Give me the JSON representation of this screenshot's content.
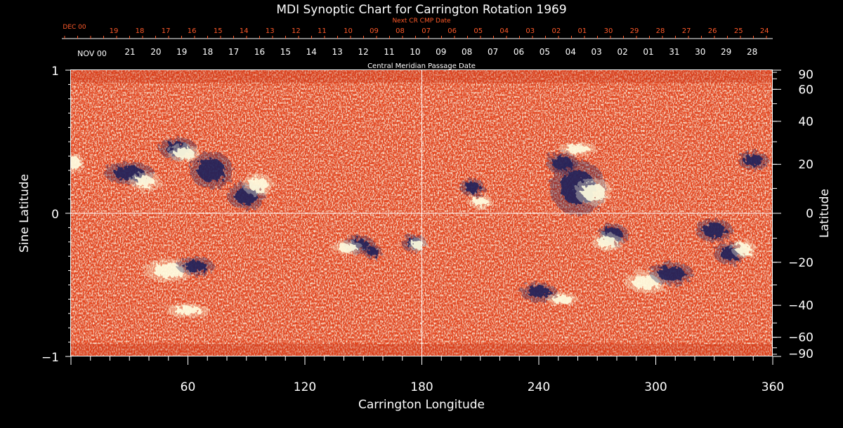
{
  "chart_data": {
    "type": "heatmap",
    "title": "MDI Synoptic Chart for Carrington Rotation 1969",
    "xlabel": "Carrington Longitude",
    "ylabel_left": "Sine Latitude",
    "ylabel_right": "Latitude",
    "xlim": [
      0,
      360
    ],
    "ylim": [
      -1,
      1
    ],
    "x_ticks": [
      60,
      120,
      180,
      240,
      300,
      360
    ],
    "y_ticks_left": [
      1,
      0,
      -1
    ],
    "y_ticks_left_labels": [
      "1",
      "0",
      "−1"
    ],
    "y_ticks_right_deg": [
      90,
      60,
      40,
      20,
      0,
      -20,
      -40,
      -60,
      -90
    ],
    "y_ticks_right_labels": [
      "90",
      "60",
      "40",
      "20",
      "0",
      "−20",
      "−40",
      "−60",
      "−90"
    ],
    "cmp_axis_label": "Central Meridian Passage Date",
    "cmp_start_label": "NOV 00",
    "cmp_dates": [
      "21",
      "20",
      "19",
      "18",
      "17",
      "16",
      "15",
      "14",
      "13",
      "12",
      "11",
      "10",
      "09",
      "08",
      "07",
      "06",
      "05",
      "04",
      "03",
      "02",
      "01",
      "31",
      "30",
      "29",
      "28"
    ],
    "next_cr_label": "Next CR CMP Date",
    "next_cr_start_label": "DEC 00",
    "next_cr_dates": [
      "19",
      "18",
      "17",
      "16",
      "15",
      "14",
      "13",
      "12",
      "11",
      "10",
      "09",
      "08",
      "07",
      "06",
      "05",
      "04",
      "03",
      "02",
      "01",
      "30",
      "29",
      "28",
      "27",
      "26",
      "25",
      "24"
    ],
    "crosshair": {
      "longitude": 180,
      "sine_latitude": 0
    },
    "colormap": {
      "background": "#e8441a",
      "positive": "#fffde0",
      "negative": "#20205a"
    },
    "regions": [
      {
        "lon": 55,
        "slat": 0.45,
        "rlon": 6,
        "rslat": 0.05,
        "polarity": "negative"
      },
      {
        "lon": 58,
        "slat": 0.42,
        "rlon": 5,
        "rslat": 0.04,
        "polarity": "positive"
      },
      {
        "lon": 30,
        "slat": 0.28,
        "rlon": 8,
        "rslat": 0.05,
        "polarity": "negative"
      },
      {
        "lon": 38,
        "slat": 0.22,
        "rlon": 5,
        "rslat": 0.04,
        "polarity": "positive"
      },
      {
        "lon": 72,
        "slat": 0.3,
        "rlon": 7,
        "rslat": 0.08,
        "polarity": "negative"
      },
      {
        "lon": 90,
        "slat": 0.12,
        "rlon": 6,
        "rslat": 0.06,
        "polarity": "negative"
      },
      {
        "lon": 96,
        "slat": 0.2,
        "rlon": 5,
        "rslat": 0.05,
        "polarity": "positive"
      },
      {
        "lon": 50,
        "slat": -0.4,
        "rlon": 8,
        "rslat": 0.05,
        "polarity": "positive"
      },
      {
        "lon": 64,
        "slat": -0.37,
        "rlon": 6,
        "rslat": 0.04,
        "polarity": "negative"
      },
      {
        "lon": 60,
        "slat": -0.68,
        "rlon": 7,
        "rslat": 0.03,
        "polarity": "positive"
      },
      {
        "lon": 148,
        "slat": -0.22,
        "rlon": 5,
        "rslat": 0.04,
        "polarity": "negative"
      },
      {
        "lon": 142,
        "slat": -0.24,
        "rlon": 5,
        "rslat": 0.03,
        "polarity": "positive"
      },
      {
        "lon": 176,
        "slat": -0.21,
        "rlon": 4,
        "rslat": 0.04,
        "polarity": "negative"
      },
      {
        "lon": 178,
        "slat": -0.22,
        "rlon": 3,
        "rslat": 0.03,
        "polarity": "positive"
      },
      {
        "lon": 155,
        "slat": -0.27,
        "rlon": 3,
        "rslat": 0.03,
        "polarity": "negative"
      },
      {
        "lon": 260,
        "slat": 0.18,
        "rlon": 9,
        "rslat": 0.12,
        "polarity": "negative"
      },
      {
        "lon": 268,
        "slat": 0.15,
        "rlon": 6,
        "rslat": 0.06,
        "polarity": "positive"
      },
      {
        "lon": 252,
        "slat": 0.35,
        "rlon": 5,
        "rslat": 0.05,
        "polarity": "negative"
      },
      {
        "lon": 260,
        "slat": 0.45,
        "rlon": 6,
        "rslat": 0.03,
        "polarity": "positive"
      },
      {
        "lon": 206,
        "slat": 0.18,
        "rlon": 4,
        "rslat": 0.04,
        "polarity": "negative"
      },
      {
        "lon": 210,
        "slat": 0.08,
        "rlon": 4,
        "rslat": 0.03,
        "polarity": "positive"
      },
      {
        "lon": 278,
        "slat": -0.15,
        "rlon": 5,
        "rslat": 0.05,
        "polarity": "negative"
      },
      {
        "lon": 275,
        "slat": -0.2,
        "rlon": 5,
        "rslat": 0.04,
        "polarity": "positive"
      },
      {
        "lon": 295,
        "slat": -0.48,
        "rlon": 7,
        "rslat": 0.05,
        "polarity": "positive"
      },
      {
        "lon": 308,
        "slat": -0.42,
        "rlon": 7,
        "rslat": 0.05,
        "polarity": "negative"
      },
      {
        "lon": 338,
        "slat": -0.28,
        "rlon": 5,
        "rslat": 0.05,
        "polarity": "negative"
      },
      {
        "lon": 345,
        "slat": -0.25,
        "rlon": 4,
        "rslat": 0.04,
        "polarity": "positive"
      },
      {
        "lon": 350,
        "slat": 0.37,
        "rlon": 5,
        "rslat": 0.04,
        "polarity": "negative"
      },
      {
        "lon": 240,
        "slat": -0.55,
        "rlon": 6,
        "rslat": 0.04,
        "polarity": "negative"
      },
      {
        "lon": 252,
        "slat": -0.6,
        "rlon": 5,
        "rslat": 0.03,
        "polarity": "positive"
      },
      {
        "lon": 330,
        "slat": -0.12,
        "rlon": 6,
        "rslat": 0.05,
        "polarity": "negative"
      },
      {
        "lon": 2,
        "slat": 0.35,
        "rlon": 3,
        "rslat": 0.04,
        "polarity": "positive"
      }
    ]
  },
  "colors": {
    "axis_color": "#ffffff",
    "next_cr_color": "#ff5a2a",
    "cmp_label_color": "#ffffff"
  }
}
